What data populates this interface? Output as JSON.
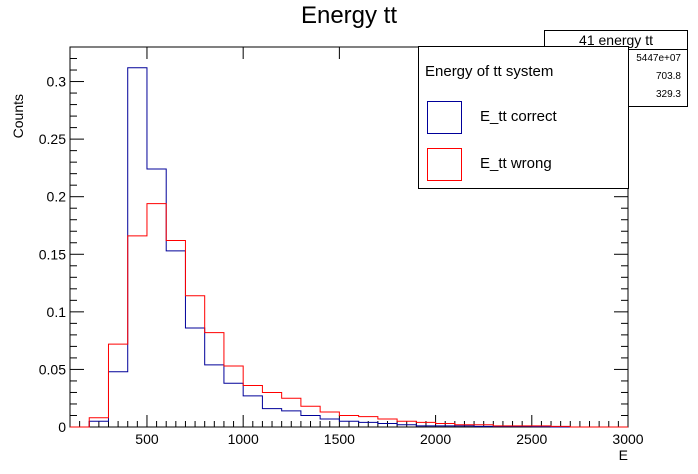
{
  "title": "Energy tt",
  "stats": {
    "name": "41 energy tt",
    "entries": "5447e+07",
    "mean": "703.8",
    "std_dev": "329.3"
  },
  "legend": {
    "header": "Energy of tt system",
    "items": [
      {
        "label": "E_tt correct",
        "color": "#000099"
      },
      {
        "label": "E_tt wrong",
        "color": "#ff0000"
      }
    ]
  },
  "colors": {
    "correct": "#000099",
    "wrong": "#ff0000"
  },
  "chart_data": {
    "type": "histogram",
    "title": "Energy tt",
    "xlabel": "E",
    "ylabel": "Counts",
    "xlim": [
      100,
      3000
    ],
    "ylim": [
      0,
      0.33
    ],
    "xticks": [
      500,
      1000,
      1500,
      2000,
      2500,
      3000
    ],
    "xtick_labels": [
      "500",
      "1000",
      "1500",
      "2000",
      "2500",
      "3000"
    ],
    "yticks": [
      0,
      0.05,
      0.1,
      0.15,
      0.2,
      0.25,
      0.3
    ],
    "ytick_labels": [
      "0",
      "0.05",
      "0.1",
      "0.15",
      "0.2",
      "0.25",
      "0.3"
    ],
    "bin_edges": [
      100,
      200,
      300,
      400,
      500,
      600,
      700,
      800,
      900,
      1000,
      1100,
      1200,
      1300,
      1400,
      1500,
      1600,
      1700,
      1800,
      1900,
      2000,
      2100,
      2200,
      2300,
      2400,
      2500,
      2600,
      2700,
      2800,
      2900,
      3000
    ],
    "series": [
      {
        "name": "E_tt correct",
        "values": [
          0,
          0.005,
          0.048,
          0.312,
          0.224,
          0.153,
          0.086,
          0.054,
          0.038,
          0.027,
          0.016,
          0.014,
          0.01,
          0.007,
          0.005,
          0.004,
          0.003,
          0.002,
          0.001,
          0.001,
          0.001,
          0.0005,
          0.0005,
          0.0005,
          0.0003,
          0,
          0,
          0,
          0
        ]
      },
      {
        "name": "E_tt wrong",
        "values": [
          0,
          0.008,
          0.072,
          0.166,
          0.194,
          0.162,
          0.114,
          0.082,
          0.053,
          0.036,
          0.03,
          0.025,
          0.018,
          0.013,
          0.01,
          0.009,
          0.007,
          0.005,
          0.004,
          0.003,
          0.002,
          0.002,
          0.001,
          0.001,
          0.001,
          0.0005,
          0,
          0,
          0
        ]
      }
    ]
  }
}
